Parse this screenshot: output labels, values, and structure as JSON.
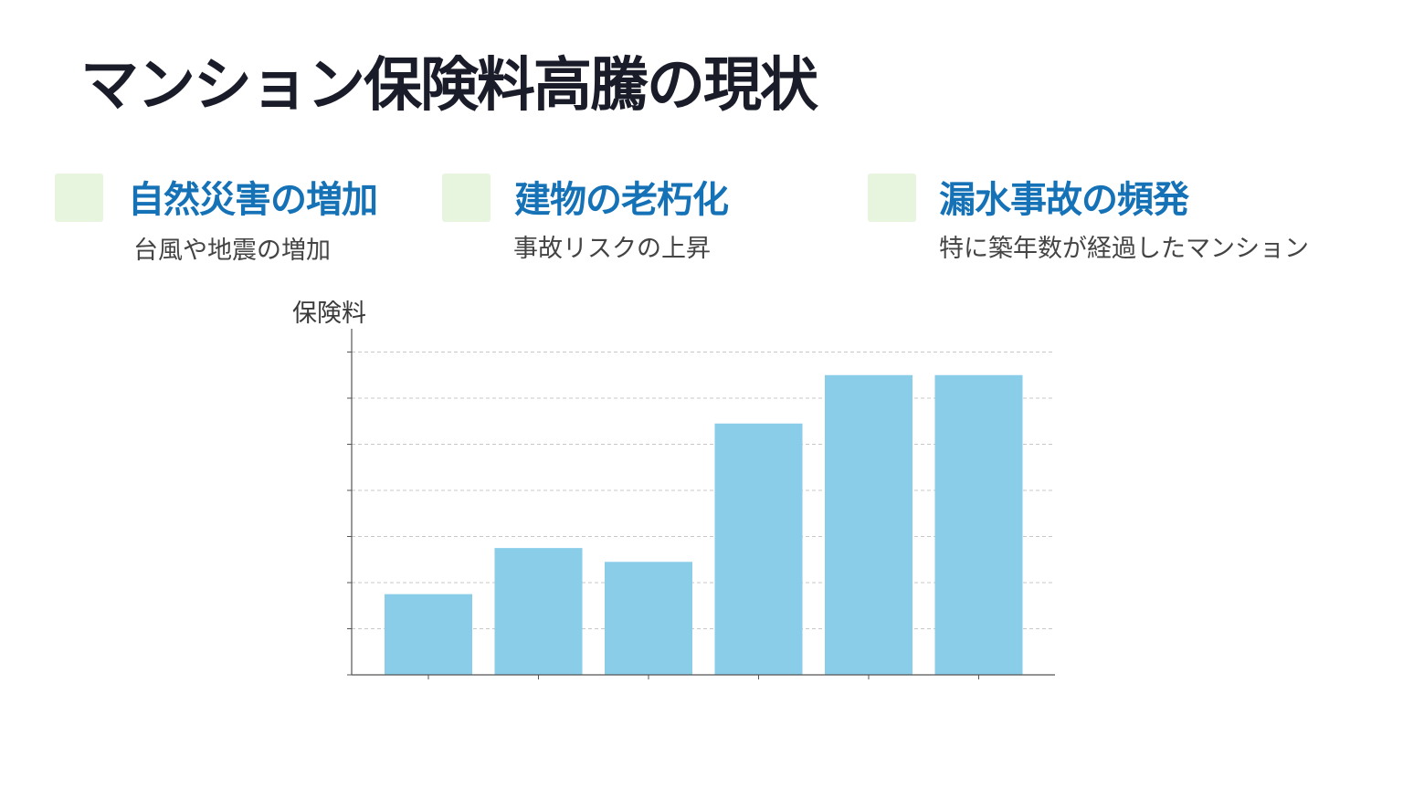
{
  "slide": {
    "title": "マンション保険料高騰の現状"
  },
  "points": [
    {
      "heading": "自然災害の増加",
      "detail": "台風や地震の増加"
    },
    {
      "heading": "建物の老朽化",
      "detail": "事故リスクの上昇"
    },
    {
      "heading": "漏水事故の頻発",
      "detail": "特に築年数が経過したマンション"
    }
  ],
  "colors": {
    "title": "#1a1d29",
    "heading": "#1572b6",
    "accent_square": "#e8f5de",
    "bar": "#89cde9",
    "grid": "#c8c8c8",
    "axis": "#555555"
  },
  "chart_data": {
    "type": "bar",
    "ylabel": "保険料",
    "xlabel": "",
    "categories": [
      "",
      "",
      "",
      "",
      "",
      ""
    ],
    "values": [
      17.5,
      27.5,
      24.5,
      54.5,
      65,
      65
    ],
    "ylim": [
      0,
      70
    ],
    "yticks": [
      0,
      10,
      20,
      30,
      40,
      50,
      60,
      70
    ],
    "grid": true,
    "legend": "none",
    "color": "#89cde9"
  }
}
